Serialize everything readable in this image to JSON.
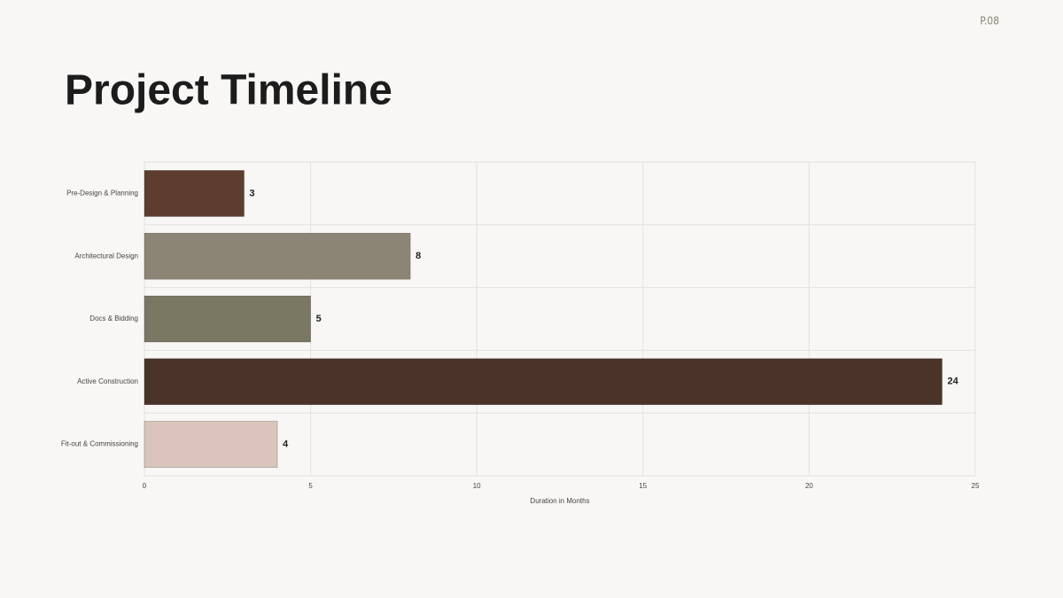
{
  "page_number": "P.08",
  "title": "Project Timeline",
  "chart_data": {
    "type": "bar",
    "orientation": "horizontal",
    "categories": [
      "Pre-Design & Planning",
      "Architectural Design",
      "Docs & Bidding",
      "Active Construction",
      "Fit-out & Commissioning"
    ],
    "values": [
      3,
      8,
      5,
      24,
      4
    ],
    "colors": [
      "#5e3d2f",
      "#8c8474",
      "#7a7763",
      "#4a3328",
      "#dac4bc"
    ],
    "xlabel": "Duration in Months",
    "xlim": [
      0,
      25
    ],
    "xticks": [
      0,
      5,
      10,
      15,
      20,
      25
    ],
    "grid": true
  }
}
